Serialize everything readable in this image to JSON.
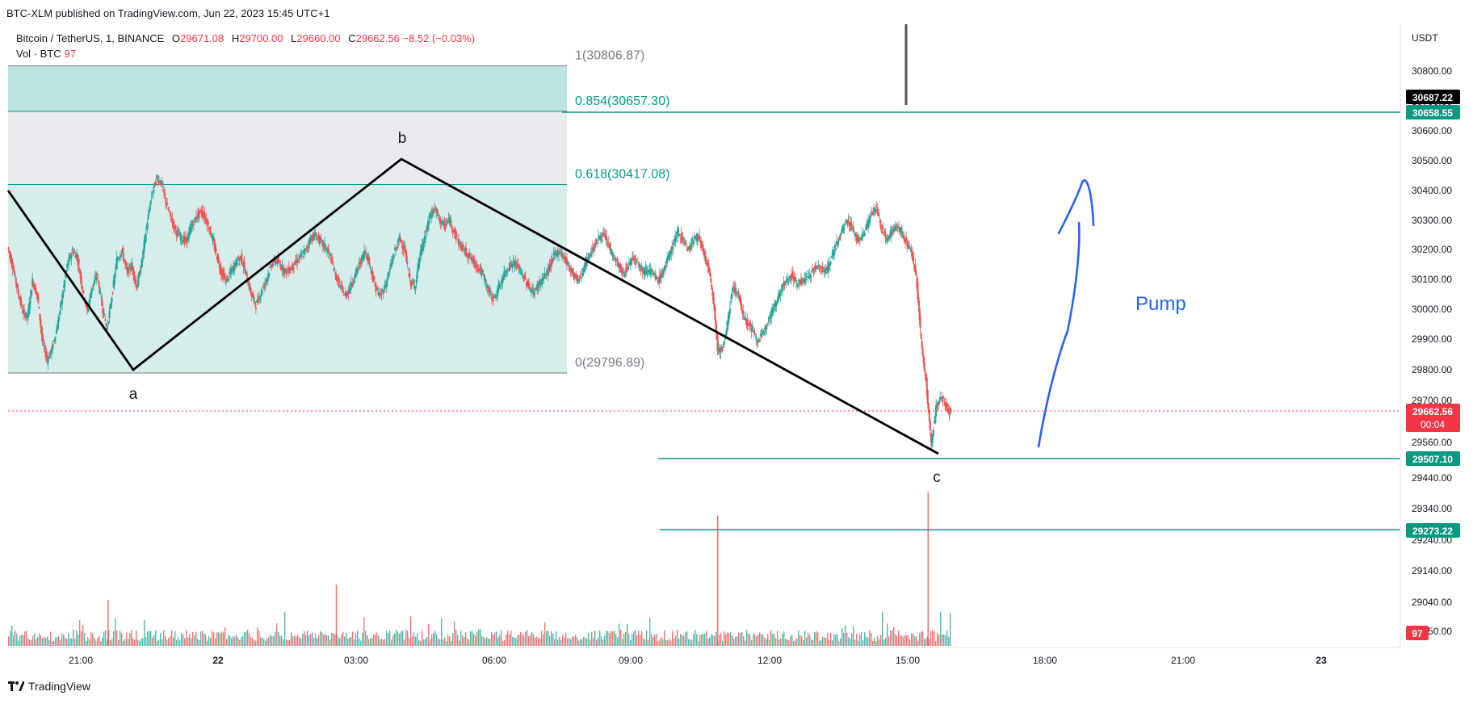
{
  "header": {
    "published": "BTC-XLM published on TradingView.com, Jun 22, 2023 15:45 UTC+1",
    "symbol": "Bitcoin / TetherUS, 1, BINANCE",
    "ohlc": {
      "o_label": "O",
      "o": "29671.08",
      "h_label": "H",
      "h": "29700.00",
      "l_label": "L",
      "l": "29660.00",
      "c_label": "C",
      "c": "29662.56",
      "change": "−8.52 (−0.03%)"
    },
    "vol_label": "Vol · BTC",
    "vol_value": "97"
  },
  "footer": {
    "brand": "TradingView"
  },
  "colors": {
    "up": "#26a69a",
    "down": "#ef5350",
    "fib": "#089981",
    "fib_fill": "#b2dfdb",
    "fib_gray": "#e0e3eb",
    "pump": "#2962ff",
    "price_tag": "#f23645",
    "black_tag": "#000000"
  },
  "chart_data": {
    "type": "candlestick",
    "currency": "USDT",
    "y_ticks": [
      "30800.00",
      "30700.00",
      "30600.00",
      "30500.00",
      "30400.00",
      "30300.00",
      "30200.00",
      "30100.00",
      "30000.00",
      "29900.00",
      "29800.00",
      "29700.00",
      "29560.00",
      "29440.00",
      "29340.00",
      "29240.00",
      "29140.00",
      "29040.00",
      "28950.00"
    ],
    "x_ticks": [
      "21:00",
      "22",
      "03:00",
      "06:00",
      "09:00",
      "12:00",
      "15:00",
      "18:00",
      "21:00",
      "23"
    ],
    "price_tags": {
      "black": "30687.22",
      "fib_green": "30658.55",
      "current": "29662.56",
      "countdown": "00:04",
      "support1": "29507.10",
      "support2": "29273.22",
      "volume": "97"
    },
    "fib_levels": [
      {
        "label": "1(30806.87)",
        "ratio": 1,
        "price": 30806.87
      },
      {
        "label": "0.854(30657.30)",
        "ratio": 0.854,
        "price": 30657.3
      },
      {
        "label": "0.618(30417.08)",
        "ratio": 0.618,
        "price": 30417.08
      },
      {
        "label": "0(29796.89)",
        "ratio": 0,
        "price": 29796.89
      }
    ],
    "waves": [
      {
        "label": "a",
        "time": "21:40",
        "price": 29796.89
      },
      {
        "label": "b",
        "time": "03:55",
        "price": 30500
      },
      {
        "label": "c",
        "time": "15:40",
        "price": 29520
      }
    ],
    "annotation": "Pump",
    "price_path": [
      [
        0,
        30210
      ],
      [
        0.25,
        30150
      ],
      [
        0.5,
        30070
      ],
      [
        0.75,
        30000
      ],
      [
        1,
        29980
      ],
      [
        1.25,
        30100
      ],
      [
        1.5,
        30050
      ],
      [
        1.75,
        29900
      ],
      [
        2,
        29840
      ],
      [
        2.25,
        29880
      ],
      [
        2.5,
        29950
      ],
      [
        2.75,
        30050
      ],
      [
        3,
        30150
      ],
      [
        3.25,
        30200
      ],
      [
        3.5,
        30180
      ],
      [
        3.75,
        30080
      ],
      [
        4,
        30000
      ],
      [
        4.25,
        30080
      ],
      [
        4.5,
        30120
      ],
      [
        4.75,
        30020
      ],
      [
        5,
        29940
      ],
      [
        5.25,
        30050
      ],
      [
        5.5,
        30170
      ],
      [
        5.75,
        30200
      ],
      [
        6,
        30130
      ],
      [
        6.25,
        30150
      ],
      [
        6.5,
        30080
      ],
      [
        6.75,
        30160
      ],
      [
        7,
        30280
      ],
      [
        7.25,
        30380
      ],
      [
        7.5,
        30440
      ],
      [
        7.75,
        30420
      ],
      [
        8,
        30350
      ],
      [
        8.25,
        30300
      ],
      [
        8.5,
        30260
      ],
      [
        8.75,
        30240
      ],
      [
        9,
        30230
      ],
      [
        9.25,
        30280
      ],
      [
        9.5,
        30310
      ],
      [
        9.75,
        30330
      ],
      [
        10,
        30300
      ],
      [
        10.25,
        30250
      ],
      [
        10.5,
        30190
      ],
      [
        10.75,
        30130
      ],
      [
        11,
        30100
      ],
      [
        11.25,
        30130
      ],
      [
        11.5,
        30160
      ],
      [
        11.75,
        30180
      ],
      [
        12,
        30120
      ],
      [
        12.25,
        30060
      ],
      [
        12.5,
        30020
      ],
      [
        12.75,
        30060
      ],
      [
        13,
        30100
      ],
      [
        13.25,
        30150
      ],
      [
        13.5,
        30170
      ],
      [
        13.75,
        30150
      ],
      [
        14,
        30130
      ],
      [
        14.25,
        30140
      ],
      [
        14.5,
        30160
      ],
      [
        14.75,
        30180
      ],
      [
        15,
        30200
      ],
      [
        15.25,
        30240
      ],
      [
        15.5,
        30250
      ],
      [
        15.75,
        30230
      ],
      [
        16,
        30210
      ],
      [
        16.25,
        30180
      ],
      [
        16.5,
        30120
      ],
      [
        16.75,
        30080
      ],
      [
        17,
        30050
      ],
      [
        17.25,
        30080
      ],
      [
        17.5,
        30120
      ],
      [
        17.75,
        30160
      ],
      [
        18,
        30200
      ],
      [
        18.25,
        30150
      ],
      [
        18.5,
        30080
      ],
      [
        18.75,
        30050
      ],
      [
        19,
        30080
      ],
      [
        19.25,
        30140
      ],
      [
        19.5,
        30200
      ],
      [
        19.75,
        30240
      ],
      [
        20,
        30200
      ],
      [
        20.25,
        30100
      ],
      [
        20.5,
        30080
      ],
      [
        20.75,
        30180
      ],
      [
        21,
        30240
      ],
      [
        21.25,
        30310
      ],
      [
        21.5,
        30340
      ],
      [
        21.75,
        30300
      ],
      [
        22,
        30280
      ],
      [
        22.25,
        30300
      ],
      [
        22.5,
        30260
      ],
      [
        22.75,
        30220
      ],
      [
        23,
        30200
      ],
      [
        23.25,
        30180
      ],
      [
        23.5,
        30160
      ],
      [
        23.75,
        30140
      ],
      [
        24,
        30110
      ],
      [
        24.25,
        30060
      ],
      [
        24.5,
        30040
      ],
      [
        24.75,
        30080
      ],
      [
        25,
        30120
      ],
      [
        25.25,
        30150
      ],
      [
        25.5,
        30160
      ],
      [
        25.75,
        30140
      ],
      [
        26,
        30110
      ],
      [
        26.25,
        30080
      ],
      [
        26.5,
        30060
      ],
      [
        26.75,
        30090
      ],
      [
        27,
        30110
      ],
      [
        27.25,
        30140
      ],
      [
        27.5,
        30180
      ],
      [
        27.75,
        30200
      ],
      [
        28,
        30180
      ],
      [
        28.25,
        30150
      ],
      [
        28.5,
        30120
      ],
      [
        28.75,
        30100
      ],
      [
        29,
        30140
      ],
      [
        29.25,
        30180
      ],
      [
        29.5,
        30210
      ],
      [
        29.75,
        30240
      ],
      [
        30,
        30250
      ],
      [
        30.25,
        30220
      ],
      [
        30.5,
        30180
      ],
      [
        30.75,
        30150
      ],
      [
        31,
        30120
      ],
      [
        31.25,
        30150
      ],
      [
        31.5,
        30180
      ],
      [
        31.75,
        30160
      ],
      [
        32,
        30130
      ],
      [
        32.25,
        30140
      ],
      [
        32.5,
        30120
      ],
      [
        32.75,
        30100
      ],
      [
        33,
        30130
      ],
      [
        33.25,
        30170
      ],
      [
        33.5,
        30220
      ],
      [
        33.75,
        30260
      ],
      [
        34,
        30240
      ],
      [
        34.25,
        30200
      ],
      [
        34.5,
        30230
      ],
      [
        34.75,
        30250
      ],
      [
        35,
        30200
      ],
      [
        35.25,
        30150
      ],
      [
        35.5,
        30060
      ],
      [
        35.75,
        29880
      ],
      [
        36,
        29870
      ],
      [
        36.25,
        29960
      ],
      [
        36.5,
        30080
      ],
      [
        36.75,
        30060
      ],
      [
        37,
        30000
      ],
      [
        37.25,
        29960
      ],
      [
        37.5,
        29940
      ],
      [
        37.75,
        29900
      ],
      [
        38,
        29920
      ],
      [
        38.25,
        29970
      ],
      [
        38.5,
        30000
      ],
      [
        38.75,
        30040
      ],
      [
        39,
        30080
      ],
      [
        39.25,
        30100
      ],
      [
        39.5,
        30120
      ],
      [
        39.75,
        30090
      ],
      [
        40,
        30100
      ],
      [
        40.25,
        30110
      ],
      [
        40.5,
        30130
      ],
      [
        40.75,
        30150
      ],
      [
        41,
        30140
      ],
      [
        41.25,
        30130
      ],
      [
        41.5,
        30180
      ],
      [
        41.75,
        30220
      ],
      [
        42,
        30260
      ],
      [
        42.25,
        30300
      ],
      [
        42.5,
        30280
      ],
      [
        42.75,
        30240
      ],
      [
        43,
        30240
      ],
      [
        43.25,
        30280
      ],
      [
        43.5,
        30320
      ],
      [
        43.75,
        30340
      ],
      [
        44,
        30270
      ],
      [
        44.25,
        30240
      ],
      [
        44.5,
        30260
      ],
      [
        44.75,
        30280
      ],
      [
        45,
        30260
      ],
      [
        45.25,
        30230
      ],
      [
        45.5,
        30200
      ],
      [
        45.75,
        30120
      ],
      [
        46,
        29900
      ],
      [
        46.25,
        29770
      ],
      [
        46.5,
        29560
      ],
      [
        46.75,
        29680
      ],
      [
        47,
        29720
      ],
      [
        47.25,
        29690
      ],
      [
        47.5,
        29662
      ]
    ],
    "volume_highlights": [
      {
        "x": 5.0,
        "h": 0.3
      },
      {
        "x": 16.5,
        "h": 0.4
      },
      {
        "x": 35.7,
        "h": 0.85
      },
      {
        "x": 46.3,
        "h": 1.0
      }
    ]
  }
}
